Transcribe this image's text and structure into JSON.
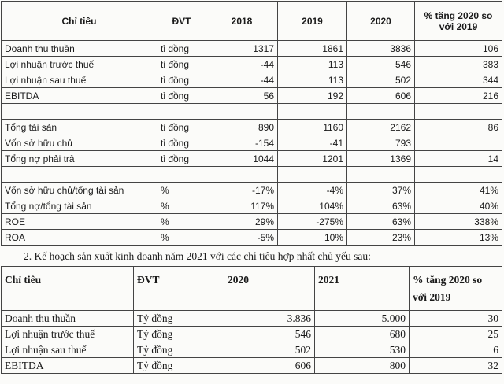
{
  "table1": {
    "header": [
      "Chỉ tiêu",
      "ĐVT",
      "2018",
      "2019",
      "2020",
      "% tăng 2020 so với 2019"
    ],
    "groups": [
      [
        [
          "Doanh thu thuần",
          "tỉ đồng",
          "1317",
          "1861",
          "3836",
          "106"
        ],
        [
          "Lợi nhuận trước thuế",
          "tỉ đồng",
          "-44",
          "113",
          "546",
          "383"
        ],
        [
          "Lợi nhuận sau thuế",
          "tỉ đồng",
          "-44",
          "113",
          "502",
          "344"
        ],
        [
          "EBITDA",
          "tỉ đồng",
          "56",
          "192",
          "606",
          "216"
        ]
      ],
      [
        [
          "Tổng tài sản",
          "tỉ đồng",
          "890",
          "1160",
          "2162",
          "86"
        ],
        [
          "Vốn sở hữu chủ",
          "tỉ đồng",
          "-154",
          "-41",
          "793",
          null
        ],
        [
          "Tổng nợ phải trả",
          "tỉ đồng",
          "1044",
          "1201",
          "1369",
          "14"
        ]
      ],
      [
        [
          "Vốn sở hữu chủ/tổng tài sản",
          "%",
          "-17%",
          "-4%",
          "37%",
          "41%"
        ],
        [
          "Tổng nợ/tổng tài sản",
          "%",
          "117%",
          "104%",
          "63%",
          "40%"
        ],
        [
          "ROE",
          "%",
          "29%",
          "-275%",
          "63%",
          "338%"
        ],
        [
          "ROA",
          "%",
          "-5%",
          "10%",
          "23%",
          "13%"
        ]
      ]
    ]
  },
  "heading": "2.   Kế hoạch sản xuất kinh doanh năm 2021 với các chỉ tiêu hợp nhất chủ yếu sau:",
  "table2": {
    "header": [
      "Chỉ tiêu",
      "ĐVT",
      "2020",
      "2021",
      "% tăng 2020 so với 2019"
    ],
    "rows": [
      [
        "Doanh thu thuần",
        "Tỷ đồng",
        "3.836",
        "5.000",
        "30"
      ],
      [
        "Lợi nhuận trước thuế",
        "Tỷ đồng",
        "546",
        "680",
        "25"
      ],
      [
        "Lợi nhuận sau thuế",
        "Tỷ đồng",
        "502",
        "530",
        "6"
      ],
      [
        "EBITDA",
        "Tỷ đồng",
        "606",
        "800",
        "32"
      ]
    ]
  }
}
